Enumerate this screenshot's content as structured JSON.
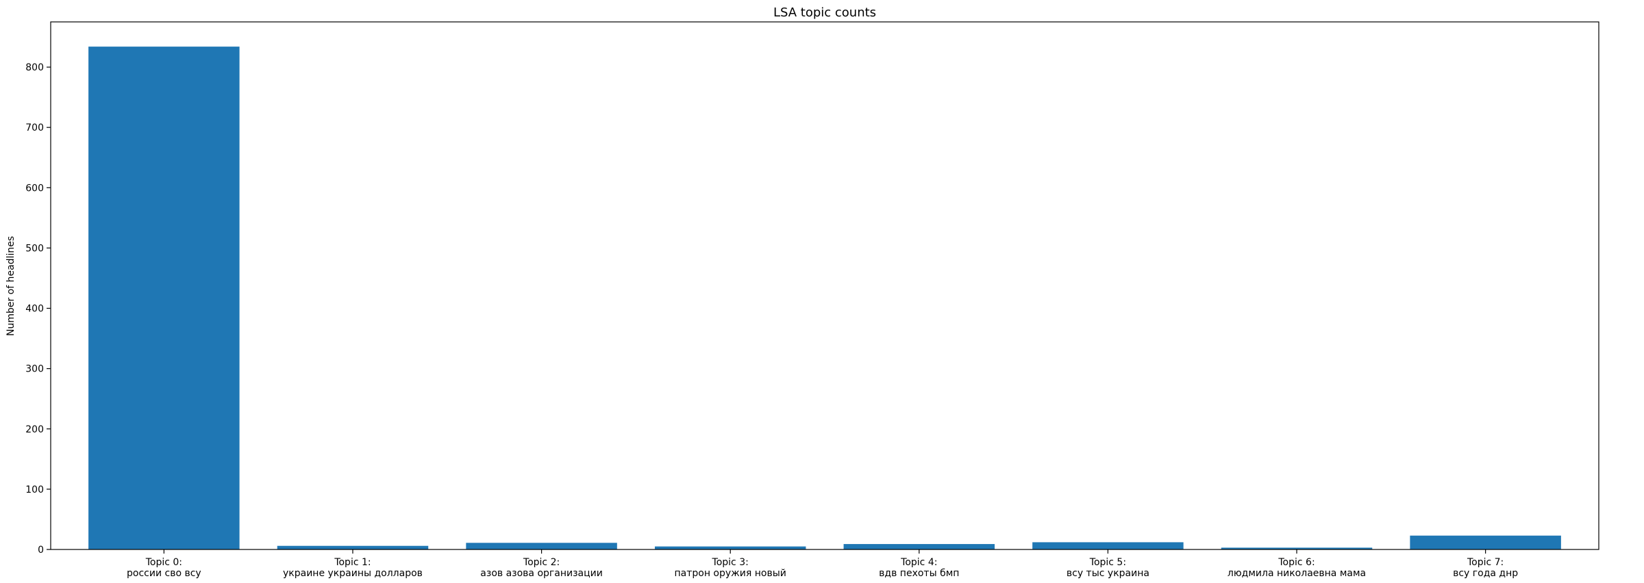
{
  "chart_data": {
    "type": "bar",
    "title": "LSA topic counts",
    "xlabel": "",
    "ylabel": "Number of headlines",
    "ylim": [
      0,
      875
    ],
    "yticks": [
      0,
      100,
      200,
      300,
      400,
      500,
      600,
      700,
      800
    ],
    "grid": false,
    "categories": [
      [
        "Topic 0:",
        "россии сво всу"
      ],
      [
        "Topic 1:",
        "украине украины долларов"
      ],
      [
        "Topic 2:",
        "азов азова организации"
      ],
      [
        "Topic 3:",
        "патрон оружия новый"
      ],
      [
        "Topic 4:",
        "вдв пехоты бмп"
      ],
      [
        "Topic 5:",
        "всу тыс украина"
      ],
      [
        "Topic 6:",
        "людмила николаевна мама"
      ],
      [
        "Topic 7:",
        "всу года днр"
      ]
    ],
    "values": [
      834,
      6,
      11,
      5,
      9,
      12,
      3,
      23
    ],
    "bar_color": "#1f77b4"
  }
}
